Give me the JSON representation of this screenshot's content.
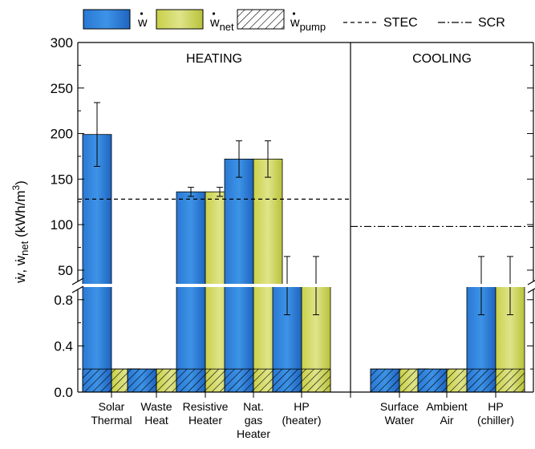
{
  "chart_data": {
    "type": "bar",
    "ylabel": "ẇ, ẇnet (kWh/m³)",
    "y_axis_upper": {
      "range": [
        0,
        300
      ],
      "ticks": [
        "50",
        "100",
        "150",
        "200",
        "250",
        "300"
      ],
      "tick_values": [
        50,
        100,
        150,
        200,
        250,
        300
      ]
    },
    "y_axis_lower": {
      "range": [
        0,
        1.0
      ],
      "ticks": [
        "0.0",
        "0.4",
        "0.8"
      ],
      "tick_values": [
        0.0,
        0.4,
        0.8
      ]
    },
    "legend": [
      {
        "key": "w",
        "label": "ẇ",
        "style": "blue"
      },
      {
        "key": "w_net",
        "label": "ẇnet",
        "style": "yellow"
      },
      {
        "key": "w_pump",
        "label": "ẇpump",
        "style": "hatch"
      },
      {
        "key": "stec",
        "label": "STEC",
        "style": "dashed"
      },
      {
        "key": "scr",
        "label": "SCR",
        "style": "dashdot"
      }
    ],
    "legend_text": {
      "w_sym": "w",
      "wnet_sym": "w",
      "wnet_sub": "net",
      "wpump_sym": "w",
      "wpump_sub": "pump",
      "stec": "STEC",
      "scr": "SCR"
    },
    "regions": [
      {
        "name": "HEATING",
        "categories": [
          "Solar Thermal",
          "Waste Heat",
          "Resistive Heater",
          "Nat. gas Heater",
          "HP (heater)"
        ]
      },
      {
        "name": "COOLING",
        "categories": [
          "Surface Water",
          "Ambient Air",
          "HP (chiller)"
        ]
      }
    ],
    "category_labels": [
      [
        "Solar",
        "Thermal"
      ],
      [
        "Waste",
        "Heat"
      ],
      [
        "Resistive",
        "Heater"
      ],
      [
        "Nat.",
        "gas",
        "Heater"
      ],
      [
        "HP",
        "(heater)"
      ],
      [
        "Surface",
        "Water"
      ],
      [
        "Ambient",
        "Air"
      ],
      [
        "HP",
        "(chiller)"
      ]
    ],
    "series": [
      {
        "key": "w",
        "values": [
          199,
          0.2,
          136,
          172,
          33,
          0.2,
          0.2,
          33
        ],
        "error": [
          35,
          0,
          5,
          20,
          32,
          0,
          0,
          32
        ]
      },
      {
        "key": "w_net",
        "values": [
          0.2,
          0.2,
          136,
          172,
          33,
          0.2,
          0.2,
          33
        ],
        "error": [
          0,
          0,
          5,
          20,
          32,
          0,
          0,
          32
        ]
      },
      {
        "key": "w_pump",
        "values": [
          0.2,
          0.2,
          0.2,
          0.2,
          0.2,
          0.2,
          0.2,
          0.2
        ]
      }
    ],
    "reference_lines": [
      {
        "key": "stec",
        "value": 128,
        "region": "HEATING"
      },
      {
        "key": "scr",
        "value": 98,
        "region": "COOLING"
      }
    ]
  }
}
